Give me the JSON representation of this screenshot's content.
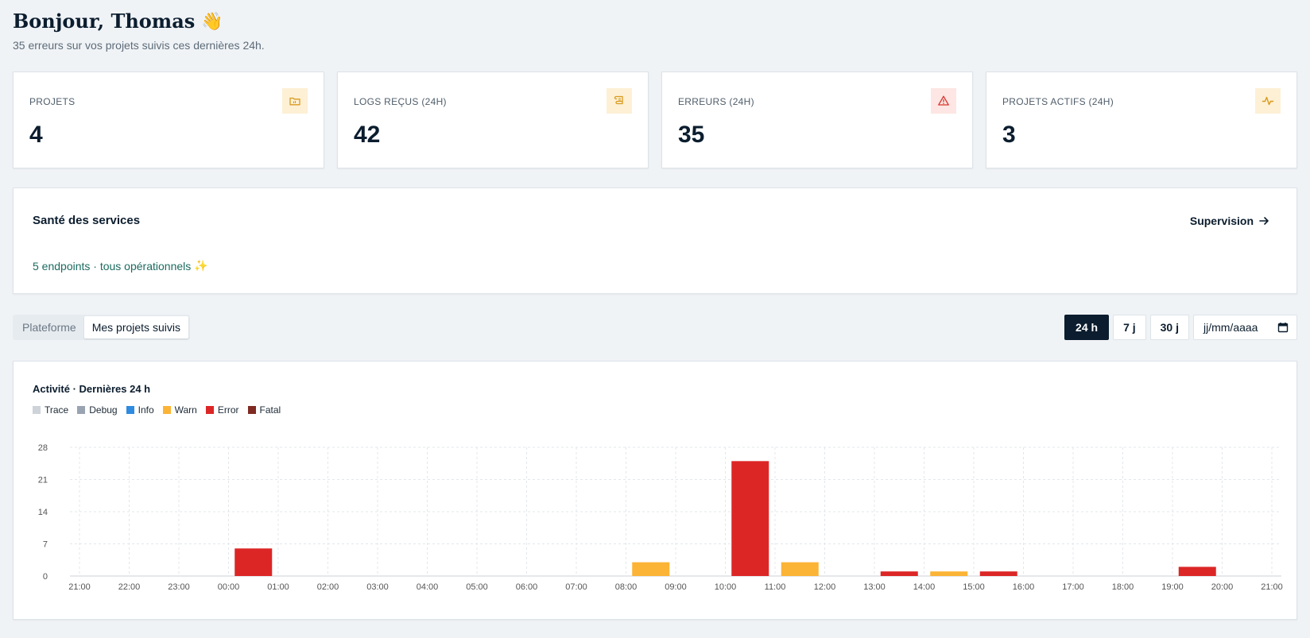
{
  "header": {
    "greeting": "Bonjour, Thomas",
    "emoji": "👋",
    "subtitle": "35 erreurs sur vos projets suivis ces dernières 24h."
  },
  "stats": [
    {
      "label": "PROJETS",
      "value": "4",
      "icon": "folder-icon",
      "icon_bg": "#fdf0d5",
      "icon_color": "#d99a1e"
    },
    {
      "label": "LOGS REÇUS (24H)",
      "value": "42",
      "icon": "scroll-icon",
      "icon_bg": "#fdf0d5",
      "icon_color": "#d99a1e"
    },
    {
      "label": "ERREURS (24H)",
      "value": "35",
      "icon": "warning-icon",
      "icon_bg": "#fde6e3",
      "icon_color": "#d9342b"
    },
    {
      "label": "PROJETS ACTIFS (24H)",
      "value": "3",
      "icon": "activity-icon",
      "icon_bg": "#fdf0d5",
      "icon_color": "#d99a1e"
    }
  ],
  "health": {
    "title": "Santé des services",
    "link": "Supervision",
    "status": "5 endpoints · tous opérationnels",
    "status_emoji": "✨"
  },
  "scope_toggle": {
    "options": [
      "Plateforme",
      "Mes projets suivis"
    ],
    "selected": "Mes projets suivis"
  },
  "ranges": {
    "options": [
      "24 h",
      "7 j",
      "30 j"
    ],
    "selected": "24 h",
    "date_placeholder": "jj/mm/aaaa"
  },
  "chart_data": {
    "type": "bar",
    "title": "Activité · Dernières 24 h",
    "legend": [
      {
        "name": "Trace",
        "color": "#cdd3d9"
      },
      {
        "name": "Debug",
        "color": "#9aa3b2"
      },
      {
        "name": "Info",
        "color": "#2f8be0"
      },
      {
        "name": "Warn",
        "color": "#fbb436"
      },
      {
        "name": "Error",
        "color": "#dc2626"
      },
      {
        "name": "Fatal",
        "color": "#7f2a22"
      }
    ],
    "categories": [
      "21:00",
      "22:00",
      "23:00",
      "00:00",
      "01:00",
      "02:00",
      "03:00",
      "04:00",
      "05:00",
      "06:00",
      "07:00",
      "08:00",
      "09:00",
      "10:00",
      "11:00",
      "12:00",
      "13:00",
      "14:00",
      "15:00",
      "16:00",
      "17:00",
      "18:00",
      "19:00",
      "20:00",
      "21:00"
    ],
    "bars": [
      {
        "category_index": 3,
        "level": "Error",
        "value": 6
      },
      {
        "category_index": 11,
        "level": "Warn",
        "value": 3
      },
      {
        "category_index": 13,
        "level": "Error",
        "value": 25
      },
      {
        "category_index": 14,
        "level": "Warn",
        "value": 3
      },
      {
        "category_index": 16,
        "level": "Error",
        "value": 1
      },
      {
        "category_index": 17,
        "level": "Warn",
        "value": 1
      },
      {
        "category_index": 18,
        "level": "Error",
        "value": 1
      },
      {
        "category_index": 22,
        "level": "Error",
        "value": 2
      }
    ],
    "yticks": [
      0,
      7,
      14,
      21,
      28
    ],
    "ylim": [
      0,
      28
    ],
    "grid": true
  }
}
